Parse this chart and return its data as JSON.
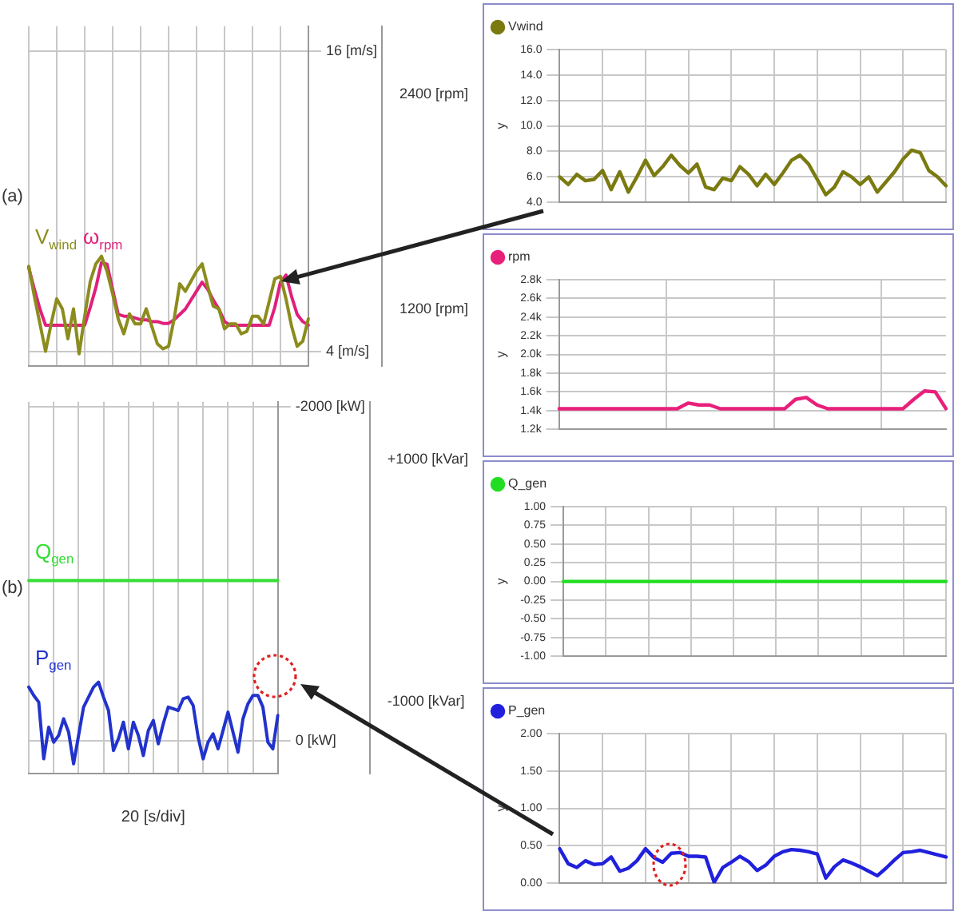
{
  "chart_data": [
    {
      "type": "line",
      "title": "(a)",
      "categories": [
        null,
        null,
        null,
        null,
        null,
        null,
        null,
        null,
        null,
        null,
        null,
        null,
        null,
        null,
        null,
        null,
        null,
        null,
        null,
        null,
        null,
        null,
        null,
        null,
        null,
        null,
        null,
        null,
        null,
        null,
        null,
        null,
        null,
        null,
        null,
        null,
        null,
        null,
        null,
        null,
        null,
        null,
        null,
        null,
        null,
        null,
        null,
        null,
        null,
        null,
        null
      ],
      "ylim": [
        3.4,
        17
      ],
      "yticks": [
        {
          "value": 4,
          "label": "4 [m/s]"
        },
        {
          "value": 16,
          "label": "16 [m/s]"
        }
      ],
      "y2lim": [
        880,
        2780
      ],
      "y2ticks": [
        {
          "value": 1200,
          "label": "1200 [rpm]"
        },
        {
          "value": 2400,
          "label": "2400 [rpm]"
        }
      ],
      "grid": true,
      "legend": false,
      "marker": "none",
      "line_style": "solid",
      "series": [
        {
          "name": "V$_{wind}$",
          "color": "#8c8c1e",
          "values": [
            7.4,
            6.2,
            5.1,
            4.0,
            5.1,
            6.1,
            5.7,
            4.5,
            5.7,
            3.9,
            5.4,
            6.8,
            7.5,
            7.8,
            7.2,
            6.3,
            5.3,
            4.7,
            5.5,
            5.1,
            5.1,
            5.7,
            5.0,
            4.3,
            4.1,
            4.2,
            5.3,
            6.7,
            6.4,
            6.8,
            7.2,
            7.5,
            6.6,
            5.8,
            5.7,
            4.9,
            5.1,
            5.1,
            4.7,
            4.8,
            5.4,
            5.4,
            5.1,
            6.0,
            6.9,
            7.0,
            6.1,
            5.0,
            4.2,
            4.4,
            5.3
          ]
        },
        {
          "name": "ω$_{rpm}$",
          "color": "#e0207a",
          "axis": "y2",
          "values": [
            1430,
            1310,
            1200,
            1110,
            1110,
            1110,
            1110,
            1110,
            1110,
            1110,
            1110,
            1210,
            1320,
            1460,
            1450,
            1310,
            1170,
            1160,
            1160,
            1150,
            1140,
            1140,
            1130,
            1130,
            1120,
            1120,
            1140,
            1170,
            1200,
            1250,
            1300,
            1350,
            1310,
            1250,
            1200,
            1130,
            1110,
            1110,
            1110,
            1110,
            1110,
            1110,
            1110,
            1110,
            1210,
            1350,
            1390,
            1270,
            1170,
            1130,
            1110
          ]
        }
      ]
    },
    {
      "type": "line",
      "title": "(b)",
      "xlabel": "20 [s/div]",
      "categories": [
        null,
        null,
        null,
        null,
        null,
        null,
        null,
        null,
        null,
        null,
        null,
        null,
        null,
        null,
        null,
        null,
        null,
        null,
        null,
        null,
        null,
        null,
        null,
        null,
        null,
        null,
        null,
        null,
        null,
        null,
        null,
        null,
        null,
        null,
        null,
        null,
        null,
        null,
        null,
        null,
        null,
        null,
        null,
        null,
        null,
        null,
        null,
        null,
        null,
        null,
        null
      ],
      "ylim": [
        200,
        -2030
      ],
      "yticks": [
        {
          "value": 0,
          "label": "0 [kW]"
        },
        {
          "value": -2000,
          "label": "-2000 [kW]"
        }
      ],
      "y2lim": [
        -1600,
        1480
      ],
      "y2ticks": [
        {
          "value": -1000,
          "label": "-1000 [kVar]"
        },
        {
          "value": 1000,
          "label": "+1000 [kVar]"
        }
      ],
      "grid": true,
      "legend": false,
      "marker": "none",
      "line_style": "solid",
      "series": [
        {
          "name": "Q$_{gen}$",
          "color": "#33dd33",
          "axis": "y2",
          "values": [
            0,
            0,
            0,
            0,
            0,
            0,
            0,
            0,
            0,
            0,
            0,
            0,
            0,
            0,
            0,
            0,
            0,
            0,
            0,
            0,
            0,
            0,
            0,
            0,
            0,
            0,
            0,
            0,
            0,
            0,
            0,
            0,
            0,
            0,
            0,
            0,
            0,
            0,
            0,
            0,
            0,
            0,
            0,
            0,
            0,
            0,
            0,
            0,
            0,
            0,
            0
          ]
        },
        {
          "name": "P$_{gen}$",
          "color": "#2233cc",
          "values": [
            -320,
            -270,
            -230,
            110,
            -80,
            10,
            -30,
            -130,
            -50,
            140,
            -30,
            -200,
            -260,
            -320,
            -350,
            -260,
            -180,
            60,
            -10,
            -110,
            50,
            -110,
            -30,
            90,
            -60,
            -120,
            20,
            -100,
            -200,
            -190,
            -180,
            -250,
            -260,
            -210,
            -20,
            110,
            10,
            -40,
            50,
            -60,
            -170,
            -50,
            70,
            -130,
            -220,
            -270,
            -270,
            -200,
            10,
            50,
            -150
          ]
        }
      ]
    },
    {
      "type": "line",
      "ylabel": "y",
      "categories": [
        null,
        null,
        null,
        null,
        null,
        null,
        null,
        null,
        null,
        null,
        null,
        null,
        null,
        null,
        null,
        null,
        null,
        null,
        null,
        null,
        null,
        null,
        null,
        null,
        null,
        null,
        null,
        null,
        null,
        null,
        null,
        null,
        null,
        null,
        null,
        null,
        null,
        null,
        null,
        null,
        null,
        null,
        null,
        null,
        null,
        null
      ],
      "ylim": [
        4,
        16
      ],
      "yticks": [
        {
          "value": 4,
          "label": "4.0"
        },
        {
          "value": 6,
          "label": "6.0"
        },
        {
          "value": 8,
          "label": "8.0"
        },
        {
          "value": 10,
          "label": "10.0"
        },
        {
          "value": 12,
          "label": "12.0"
        },
        {
          "value": 14,
          "label": "14.0"
        },
        {
          "value": 16,
          "label": "16.0"
        }
      ],
      "grid": true,
      "legend": "top left",
      "marker": "none",
      "line_style": "solid",
      "series": [
        {
          "name": "Vwind",
          "color": "#7a7a10",
          "values": [
            6.0,
            5.4,
            6.2,
            5.7,
            5.8,
            6.5,
            5.0,
            6.4,
            4.8,
            6.0,
            7.3,
            6.1,
            6.8,
            7.7,
            6.9,
            6.3,
            7.0,
            5.2,
            5.0,
            5.9,
            5.7,
            6.8,
            6.2,
            5.3,
            6.2,
            5.4,
            6.3,
            7.3,
            7.7,
            7.0,
            5.8,
            4.6,
            5.2,
            6.4,
            6.0,
            5.4,
            6.0,
            4.8,
            5.6,
            6.4,
            7.4,
            8.1,
            7.9,
            6.5,
            6.0,
            5.3
          ]
        }
      ]
    },
    {
      "type": "line",
      "ylabel": "y",
      "categories": [
        null,
        null,
        null,
        null,
        null,
        null,
        null,
        null,
        null,
        null,
        null,
        null,
        null,
        null,
        null,
        null,
        null,
        null,
        null,
        null,
        null,
        null,
        null,
        null,
        null,
        null,
        null,
        null,
        null,
        null,
        null,
        null,
        null,
        null,
        null,
        null,
        null
      ],
      "ylim": [
        1200,
        2800
      ],
      "yticks": [
        {
          "value": 1200,
          "label": "1.2k"
        },
        {
          "value": 1400,
          "label": "1.4k"
        },
        {
          "value": 1600,
          "label": "1.6k"
        },
        {
          "value": 1800,
          "label": "1.8k"
        },
        {
          "value": 2000,
          "label": "2.0k"
        },
        {
          "value": 2200,
          "label": "2.2k"
        },
        {
          "value": 2400,
          "label": "2.4k"
        },
        {
          "value": 2600,
          "label": "2.6k"
        },
        {
          "value": 2800,
          "label": "2.8k"
        }
      ],
      "grid": true,
      "legend": "top left",
      "marker": "none",
      "line_style": "solid",
      "series": [
        {
          "name": "rpm",
          "color": "#e8207a",
          "values": [
            1420,
            1420,
            1420,
            1420,
            1420,
            1420,
            1420,
            1420,
            1420,
            1420,
            1420,
            1420,
            1480,
            1460,
            1460,
            1420,
            1420,
            1420,
            1420,
            1420,
            1420,
            1420,
            1520,
            1540,
            1460,
            1420,
            1420,
            1420,
            1420,
            1420,
            1420,
            1420,
            1420,
            1520,
            1610,
            1600,
            1420
          ]
        }
      ]
    },
    {
      "type": "line",
      "ylabel": "y",
      "categories": [
        null,
        null,
        null,
        null,
        null,
        null,
        null,
        null,
        null,
        null,
        null,
        null,
        null,
        null,
        null,
        null,
        null,
        null,
        null,
        null,
        null,
        null,
        null,
        null,
        null,
        null,
        null,
        null,
        null,
        null,
        null,
        null,
        null,
        null,
        null,
        null,
        null,
        null,
        null,
        null,
        null,
        null,
        null,
        null,
        null,
        null
      ],
      "ylim": [
        -1,
        1
      ],
      "yticks": [
        {
          "value": -1,
          "label": "-1.00"
        },
        {
          "value": -0.75,
          "label": "-0.75"
        },
        {
          "value": -0.5,
          "label": "-0.50"
        },
        {
          "value": -0.25,
          "label": "-0.25"
        },
        {
          "value": 0,
          "label": "0.00"
        },
        {
          "value": 0.25,
          "label": "0.25"
        },
        {
          "value": 0.5,
          "label": "0.50"
        },
        {
          "value": 0.75,
          "label": "0.75"
        },
        {
          "value": 1,
          "label": "1.00"
        }
      ],
      "grid": true,
      "legend": "top left",
      "marker": "none",
      "line_style": "solid",
      "series": [
        {
          "name": "Q_gen",
          "color": "#22dd22",
          "values": [
            0,
            0,
            0,
            0,
            0,
            0,
            0,
            0,
            0,
            0,
            0,
            0,
            0,
            0,
            0,
            0,
            0,
            0,
            0,
            0,
            0,
            0,
            0,
            0,
            0,
            0,
            0,
            0,
            0,
            0,
            0,
            0,
            0,
            0,
            0,
            0,
            0,
            0,
            0,
            0,
            0,
            0,
            0,
            0,
            0,
            0
          ]
        }
      ]
    },
    {
      "type": "line",
      "ylabel": "y",
      "categories": [
        null,
        null,
        null,
        null,
        null,
        null,
        null,
        null,
        null,
        null,
        null,
        null,
        null,
        null,
        null,
        null,
        null,
        null,
        null,
        null,
        null,
        null,
        null,
        null,
        null,
        null,
        null,
        null,
        null,
        null,
        null,
        null,
        null,
        null,
        null,
        null,
        null,
        null,
        null,
        null,
        null,
        null,
        null,
        null,
        null,
        null
      ],
      "ylim": [
        0,
        2
      ],
      "yticks": [
        {
          "value": 0,
          "label": "0.00"
        },
        {
          "value": 0.5,
          "label": "0.50"
        },
        {
          "value": 1,
          "label": "1.00"
        },
        {
          "value": 1.5,
          "label": "1.50"
        },
        {
          "value": 2,
          "label": "2.00"
        }
      ],
      "grid": true,
      "legend": "top left",
      "marker": "none",
      "line_style": "solid",
      "series": [
        {
          "name": "P_gen",
          "color": "#2020dd",
          "values": [
            0.46,
            0.26,
            0.21,
            0.3,
            0.25,
            0.26,
            0.35,
            0.16,
            0.2,
            0.3,
            0.46,
            0.34,
            0.28,
            0.4,
            0.41,
            0.36,
            0.36,
            0.35,
            0.01,
            0.21,
            0.28,
            0.36,
            0.29,
            0.17,
            0.24,
            0.36,
            0.42,
            0.45,
            0.44,
            0.42,
            0.39,
            0.07,
            0.22,
            0.31,
            0.27,
            0.22,
            0.16,
            0.1,
            0.2,
            0.31,
            0.41,
            0.42,
            0.44,
            0.41,
            0.38,
            0.35
          ]
        }
      ]
    }
  ]
}
